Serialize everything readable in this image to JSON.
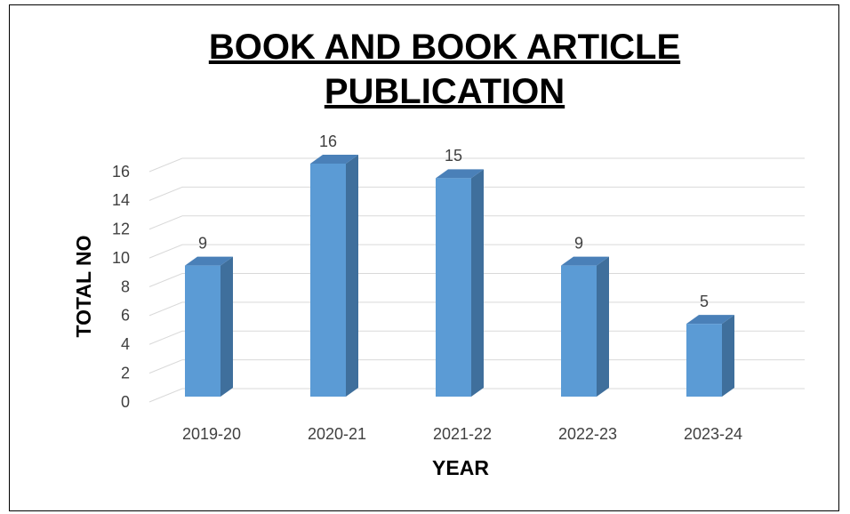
{
  "chart_data": {
    "type": "bar",
    "title": "BOOK AND BOOK ARTICLE PUBLICATION",
    "categories": [
      "2019-20",
      "2020-21",
      "2021-22",
      "2022-23",
      "2023-24"
    ],
    "values": [
      9,
      16,
      15,
      9,
      5
    ],
    "color": "#5b9bd5",
    "xlabel": "YEAR",
    "ylabel": "TOTAL NO",
    "ylim": [
      0,
      16
    ],
    "yticks": [
      0,
      2,
      4,
      6,
      8,
      10,
      12,
      14,
      16
    ],
    "grid": true
  }
}
